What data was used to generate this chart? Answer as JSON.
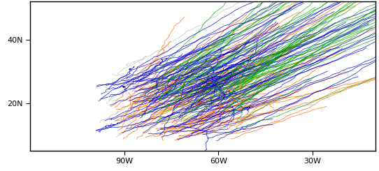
{
  "lon_min": -120,
  "lon_max": -10,
  "lat_min": 5,
  "lat_max": 52,
  "xticks": [
    -90,
    -60,
    -30
  ],
  "xtick_labels": [
    "90W",
    "60W",
    "30W"
  ],
  "yticks": [
    20,
    40
  ],
  "ytick_labels": [
    "20N",
    "40N"
  ],
  "colors": {
    "blue": "#0000CC",
    "orange": "#FF6600",
    "green": "#00AA00",
    "gray": "#AAAAAA"
  },
  "track_linewidth": 0.5,
  "coastline_linewidth": 1.0,
  "border_linewidth": 0.5,
  "background_color": "#FFFFFF",
  "n_blue": 120,
  "n_orange": 80,
  "n_green": 50,
  "n_gray": 30,
  "seed": 42
}
